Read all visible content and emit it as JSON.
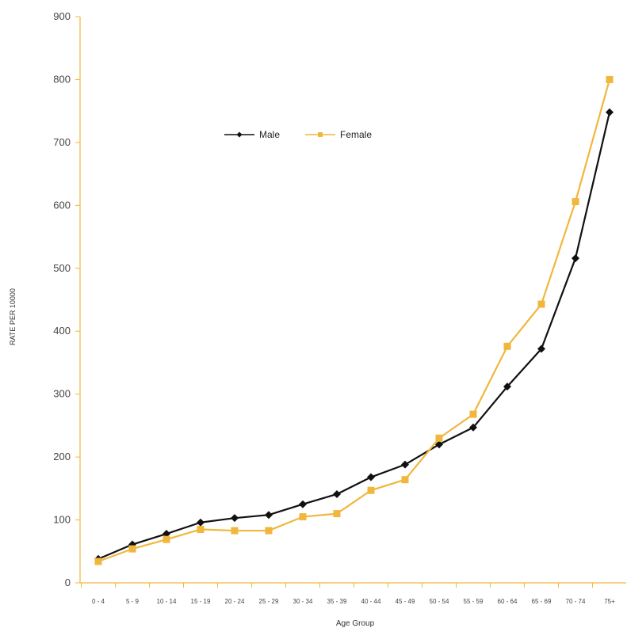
{
  "chart_data": {
    "type": "line",
    "title": "",
    "xlabel": "Age Group",
    "ylabel": "RATE PER 10000",
    "ylim": [
      0,
      900
    ],
    "yticks": [
      0,
      100,
      200,
      300,
      400,
      500,
      600,
      700,
      800,
      900
    ],
    "grid": false,
    "legend": "top-center",
    "categories": [
      "0 - 4",
      "5 - 9",
      "10 - 14",
      "15 - 19",
      "20 - 24",
      "25 - 29",
      "30 - 34",
      "35 - 39",
      "40 - 44",
      "45 - 49",
      "50 - 54",
      "55 - 59",
      "60 - 64",
      "65 - 69",
      "70 - 74",
      "75+"
    ],
    "series": [
      {
        "name": "Male",
        "color": "#111111",
        "marker": "diamond",
        "values": [
          38,
          61,
          78,
          96,
          103,
          108,
          125,
          141,
          168,
          188,
          220,
          247,
          312,
          372,
          516,
          748
        ]
      },
      {
        "name": "Female",
        "color": "#f0b73c",
        "marker": "square",
        "values": [
          34,
          54,
          69,
          85,
          83,
          83,
          105,
          110,
          147,
          164,
          230,
          268,
          376,
          443,
          606,
          800
        ]
      }
    ],
    "axis_color": "#f0b73c"
  }
}
